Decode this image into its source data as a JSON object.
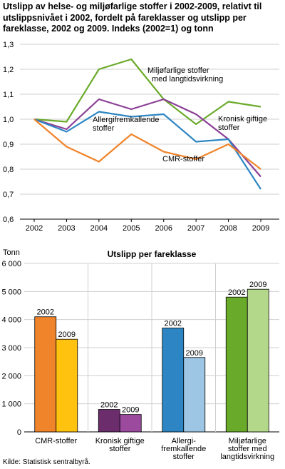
{
  "title": "Utslipp av helse- og miljøfarlige stoffer i 2002-2009, relativt til utslippsnivået i 2002, fordelt på fareklasser og utslipp per fareklasse, 2002 og 2009. Indeks (2002=1) og tonn",
  "source": "Kilde: Statistisk sentralbyrå.",
  "chart_data": [
    {
      "type": "line",
      "title": "",
      "x": [
        "2002",
        "2003",
        "2004",
        "2005",
        "2006",
        "2007",
        "2008",
        "2009"
      ],
      "ylim": [
        0.6,
        1.3
      ],
      "yticks": [
        "0,6",
        "0,7",
        "0,8",
        "0,9",
        "1,0",
        "1,1",
        "1,2",
        "1,3"
      ],
      "grid": true,
      "series": [
        {
          "name": "Miljøfarlige stoffer med langtidsvirkning",
          "label_lines": [
            "Miljøfarlige stoffer",
            "med langtidsvirkning"
          ],
          "color": "#6aaa2b",
          "values": [
            1.0,
            0.99,
            1.2,
            1.24,
            1.08,
            0.98,
            1.07,
            1.05
          ]
        },
        {
          "name": "Kronisk giftige stoffer",
          "label_lines": [
            "Kronisk giftige",
            "stoffer"
          ],
          "color": "#8b3f96",
          "values": [
            1.0,
            0.96,
            1.08,
            1.04,
            1.08,
            1.02,
            0.92,
            0.77
          ]
        },
        {
          "name": "Allergifremkallende stoffer",
          "label_lines": [
            "Allergifremkallende",
            "stoffer"
          ],
          "color": "#2d86c3",
          "values": [
            1.0,
            0.95,
            1.03,
            1.01,
            1.02,
            0.91,
            0.92,
            0.72
          ]
        },
        {
          "name": "CMR-stoffer",
          "label_lines": [
            "CMR-stoffer"
          ],
          "color": "#f0842a",
          "values": [
            1.0,
            0.89,
            0.83,
            0.94,
            0.87,
            0.84,
            0.9,
            0.8
          ]
        }
      ]
    },
    {
      "type": "bar",
      "title": "Utslipp per fareklasse",
      "ylabel": "Tonn",
      "ylim": [
        0,
        6000
      ],
      "yticks": [
        "0",
        "1 000",
        "2 000",
        "3 000",
        "4 000",
        "5 000",
        "6 000"
      ],
      "grid": true,
      "series_labels": [
        "2002",
        "2009"
      ],
      "categories": [
        {
          "label_lines": [
            "CMR-stoffer"
          ],
          "values": [
            4100,
            3300
          ],
          "colors": [
            "#f0842a",
            "#ffc20e"
          ]
        },
        {
          "label_lines": [
            "Kronisk giftige",
            "stoffer"
          ],
          "values": [
            800,
            620
          ],
          "colors": [
            "#6b2d6b",
            "#9b4a9e"
          ]
        },
        {
          "label_lines": [
            "Allergi-",
            "fremkallende",
            "stoffer"
          ],
          "values": [
            3700,
            2650
          ],
          "colors": [
            "#2d86c3",
            "#9cc6e3"
          ]
        },
        {
          "label_lines": [
            "Miljøfarlige",
            "stoffer med",
            "langtidsvirkning"
          ],
          "values": [
            4800,
            5080
          ],
          "colors": [
            "#6aaa2b",
            "#b3d88a"
          ]
        }
      ]
    }
  ]
}
